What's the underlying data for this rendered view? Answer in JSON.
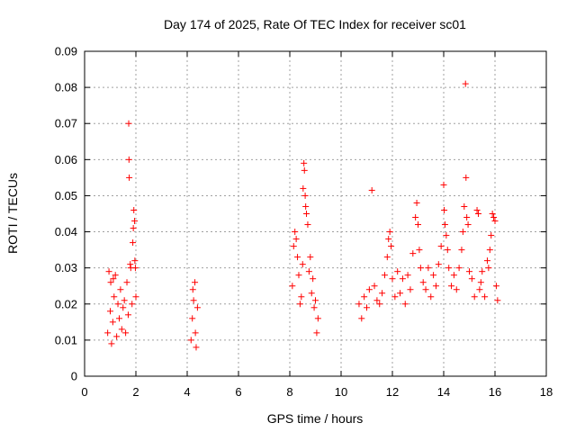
{
  "chart_data": {
    "type": "scatter",
    "title": "Day 174 of 2025, Rate Of TEC Index for receiver sc01",
    "xlabel": "GPS time / hours",
    "ylabel": "ROTI / TECUs",
    "xlim": [
      0,
      18
    ],
    "ylim": [
      0,
      0.09
    ],
    "x_ticks": [
      "0",
      "2",
      "4",
      "6",
      "8",
      "10",
      "12",
      "14",
      "16",
      "18"
    ],
    "y_ticks": [
      "0",
      "0.01",
      "0.02",
      "0.03",
      "0.04",
      "0.05",
      "0.06",
      "0.07",
      "0.08",
      "0.09"
    ],
    "grid": true,
    "marker": "+",
    "color": "#ff0000",
    "series": [
      {
        "name": "ROTI",
        "points": [
          [
            0.9,
            0.012
          ],
          [
            0.95,
            0.029
          ],
          [
            1.0,
            0.018
          ],
          [
            1.05,
            0.009
          ],
          [
            1.1,
            0.015
          ],
          [
            1.15,
            0.022
          ],
          [
            1.2,
            0.028
          ],
          [
            1.25,
            0.011
          ],
          [
            1.3,
            0.02
          ],
          [
            1.35,
            0.016
          ],
          [
            1.4,
            0.024
          ],
          [
            1.45,
            0.013
          ],
          [
            1.5,
            0.019
          ],
          [
            1.55,
            0.021
          ],
          [
            1.6,
            0.012
          ],
          [
            1.65,
            0.026
          ],
          [
            1.7,
            0.017
          ],
          [
            1.72,
            0.07
          ],
          [
            1.73,
            0.06
          ],
          [
            1.74,
            0.055
          ],
          [
            1.78,
            0.031
          ],
          [
            1.8,
            0.03
          ],
          [
            1.85,
            0.02
          ],
          [
            1.88,
            0.037
          ],
          [
            1.9,
            0.041
          ],
          [
            1.92,
            0.046
          ],
          [
            1.95,
            0.043
          ],
          [
            1.98,
            0.03
          ],
          [
            2.0,
            0.022
          ],
          [
            1.96,
            0.032
          ],
          [
            1.02,
            0.026
          ],
          [
            1.12,
            0.027
          ],
          [
            4.15,
            0.01
          ],
          [
            4.2,
            0.016
          ],
          [
            4.25,
            0.021
          ],
          [
            4.3,
            0.026
          ],
          [
            4.35,
            0.008
          ],
          [
            4.4,
            0.019
          ],
          [
            4.22,
            0.024
          ],
          [
            4.32,
            0.012
          ],
          [
            8.1,
            0.025
          ],
          [
            8.15,
            0.036
          ],
          [
            8.2,
            0.04
          ],
          [
            8.25,
            0.038
          ],
          [
            8.3,
            0.033
          ],
          [
            8.35,
            0.028
          ],
          [
            8.4,
            0.02
          ],
          [
            8.45,
            0.022
          ],
          [
            8.5,
            0.031
          ],
          [
            8.55,
            0.059
          ],
          [
            8.57,
            0.057
          ],
          [
            8.52,
            0.052
          ],
          [
            8.6,
            0.05
          ],
          [
            8.62,
            0.047
          ],
          [
            8.65,
            0.045
          ],
          [
            8.7,
            0.042
          ],
          [
            8.8,
            0.033
          ],
          [
            8.9,
            0.027
          ],
          [
            9.0,
            0.021
          ],
          [
            9.1,
            0.016
          ],
          [
            8.75,
            0.029
          ],
          [
            8.85,
            0.023
          ],
          [
            9.05,
            0.012
          ],
          [
            8.95,
            0.019
          ],
          [
            10.7,
            0.02
          ],
          [
            10.8,
            0.016
          ],
          [
            10.9,
            0.022
          ],
          [
            11.0,
            0.019
          ],
          [
            11.1,
            0.024
          ],
          [
            11.2,
            0.0515
          ],
          [
            11.3,
            0.025
          ],
          [
            11.4,
            0.021
          ],
          [
            11.5,
            0.02
          ],
          [
            11.6,
            0.023
          ],
          [
            11.7,
            0.028
          ],
          [
            11.8,
            0.033
          ],
          [
            11.85,
            0.038
          ],
          [
            11.9,
            0.04
          ],
          [
            11.95,
            0.036
          ],
          [
            12.0,
            0.027
          ],
          [
            12.1,
            0.022
          ],
          [
            12.2,
            0.029
          ],
          [
            12.3,
            0.023
          ],
          [
            12.4,
            0.027
          ],
          [
            12.5,
            0.02
          ],
          [
            12.6,
            0.028
          ],
          [
            12.7,
            0.024
          ],
          [
            12.8,
            0.034
          ],
          [
            12.9,
            0.044
          ],
          [
            12.95,
            0.048
          ],
          [
            13.0,
            0.042
          ],
          [
            13.05,
            0.035
          ],
          [
            13.1,
            0.03
          ],
          [
            13.2,
            0.026
          ],
          [
            13.3,
            0.024
          ],
          [
            13.4,
            0.03
          ],
          [
            13.5,
            0.022
          ],
          [
            13.6,
            0.028
          ],
          [
            13.7,
            0.025
          ],
          [
            13.8,
            0.031
          ],
          [
            13.9,
            0.036
          ],
          [
            14.0,
            0.053
          ],
          [
            14.02,
            0.046
          ],
          [
            14.05,
            0.042
          ],
          [
            14.1,
            0.039
          ],
          [
            14.15,
            0.035
          ],
          [
            14.2,
            0.03
          ],
          [
            14.3,
            0.025
          ],
          [
            14.4,
            0.028
          ],
          [
            14.5,
            0.024
          ],
          [
            14.6,
            0.03
          ],
          [
            14.7,
            0.035
          ],
          [
            14.75,
            0.04
          ],
          [
            14.8,
            0.047
          ],
          [
            14.85,
            0.081
          ],
          [
            14.87,
            0.055
          ],
          [
            14.9,
            0.044
          ],
          [
            14.95,
            0.042
          ],
          [
            15.0,
            0.029
          ],
          [
            15.1,
            0.027
          ],
          [
            15.2,
            0.022
          ],
          [
            15.3,
            0.046
          ],
          [
            15.35,
            0.045
          ],
          [
            15.4,
            0.024
          ],
          [
            15.5,
            0.029
          ],
          [
            15.6,
            0.022
          ],
          [
            15.7,
            0.032
          ],
          [
            15.8,
            0.035
          ],
          [
            15.9,
            0.045
          ],
          [
            15.95,
            0.044
          ],
          [
            16.0,
            0.043
          ],
          [
            16.05,
            0.025
          ],
          [
            16.1,
            0.021
          ],
          [
            15.85,
            0.039
          ],
          [
            15.75,
            0.03
          ],
          [
            15.45,
            0.026
          ]
        ]
      }
    ]
  }
}
